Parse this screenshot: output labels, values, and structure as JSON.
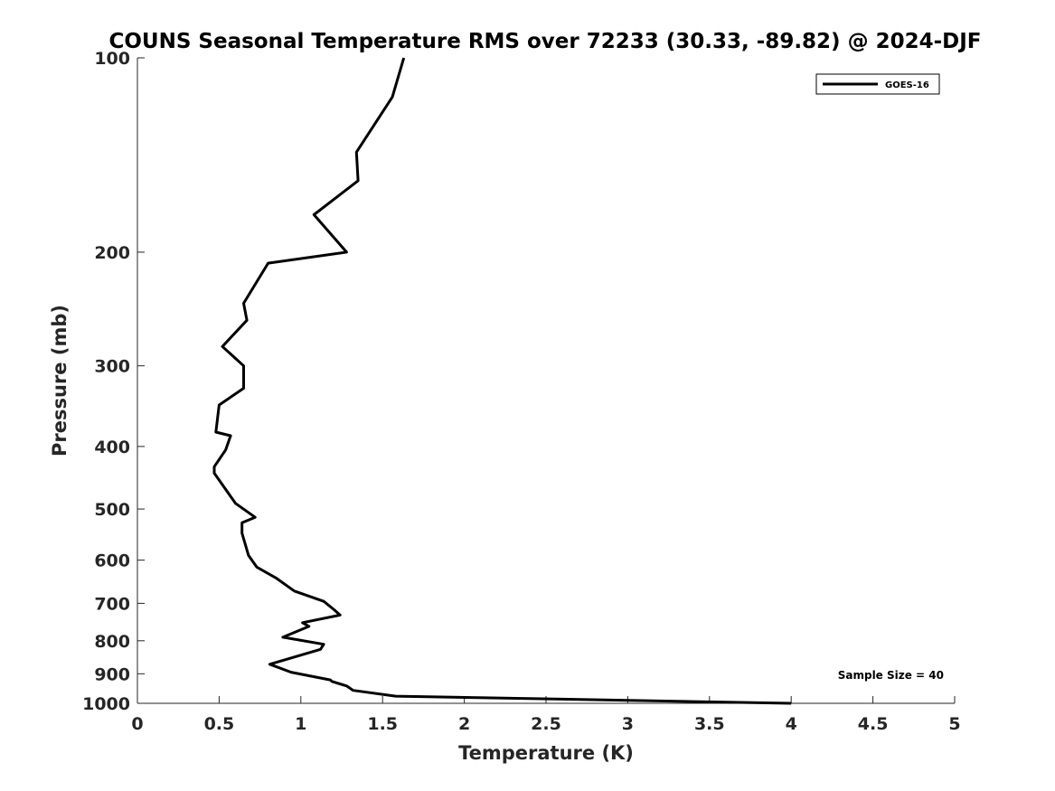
{
  "chart_data": {
    "type": "line",
    "title": "COUNS Seasonal Temperature RMS over 72233 (30.33, -89.82) @ 2024-DJF",
    "xlabel": "Temperature (K)",
    "ylabel": "Pressure (mb)",
    "xlim": [
      0,
      5
    ],
    "ylim": [
      100,
      1000
    ],
    "y_scale": "log",
    "y_reversed": true,
    "x_ticks": [
      "0",
      "0.5",
      "1",
      "1.5",
      "2",
      "2.5",
      "3",
      "3.5",
      "4",
      "4.5",
      "5"
    ],
    "y_ticks": [
      "100",
      "200",
      "300",
      "400",
      "500",
      "600",
      "700",
      "800",
      "900",
      "1000"
    ],
    "grid": false,
    "legend_position": "top-right",
    "annotation": "Sample Size = 40",
    "series": [
      {
        "name": "GOES-16",
        "color": "#000000",
        "x": [
          1.63,
          1.56,
          1.34,
          1.35,
          1.08,
          1.28,
          0.8,
          0.65,
          0.67,
          0.52,
          0.65,
          0.65,
          0.5,
          0.48,
          0.57,
          0.54,
          0.47,
          0.47,
          0.6,
          0.72,
          0.64,
          0.64,
          0.68,
          0.73,
          0.85,
          0.96,
          1.14,
          1.2,
          1.24,
          1.01,
          1.05,
          0.89,
          1.14,
          1.12,
          0.81,
          0.94,
          1.18,
          1.19,
          1.28,
          1.32,
          1.58,
          4.0
        ],
        "y": [
          100,
          115,
          140,
          155,
          175,
          200,
          208,
          240,
          255,
          280,
          300,
          325,
          345,
          380,
          385,
          405,
          430,
          440,
          490,
          515,
          525,
          545,
          590,
          615,
          640,
          670,
          695,
          715,
          730,
          750,
          760,
          790,
          810,
          825,
          870,
          895,
          920,
          925,
          940,
          955,
          975,
          1000
        ]
      }
    ]
  }
}
